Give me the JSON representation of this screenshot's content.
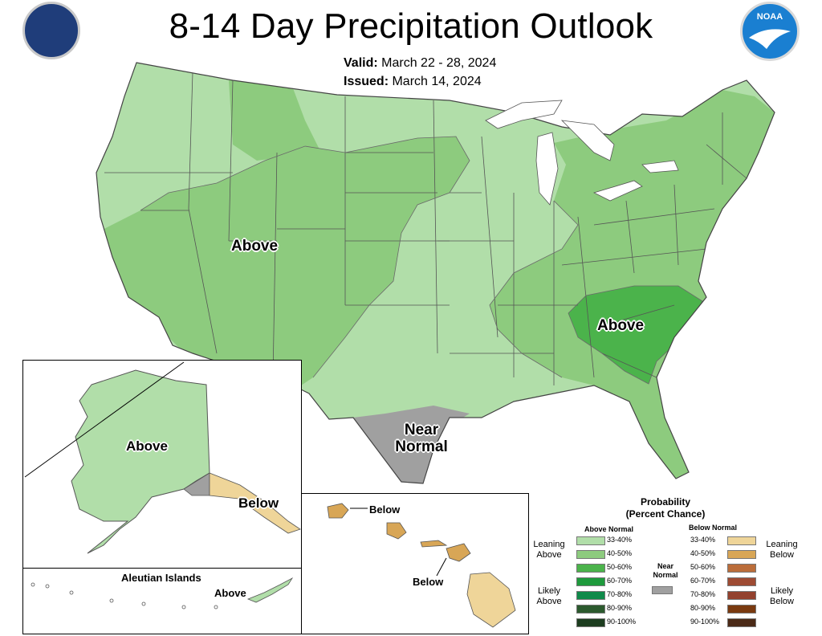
{
  "header": {
    "title": "8-14 Day Precipitation Outlook",
    "valid_label": "Valid:",
    "valid_value": "March 22 - 28, 2024",
    "issued_label": "Issued:",
    "issued_value": "March 14, 2024"
  },
  "logos": {
    "left": "commerce-seal-icon",
    "right": "noaa-logo-icon",
    "noaa_text": "NOAA"
  },
  "regions": {
    "conus_west": "Above",
    "conus_southeast": "Above",
    "texas_line1": "Near",
    "texas_line2": "Normal",
    "alaska": "Above",
    "alaska_se": "Below",
    "aleutian_title": "Aleutian Islands",
    "aleutian": "Above",
    "hawaii_west": "Below",
    "hawaii_east": "Below"
  },
  "colors": {
    "lean_above": "#b1dea9",
    "above_40_50": "#8dcb7e",
    "above_50_60": "#4bb34b",
    "near_normal": "#a0a0a0",
    "lean_below": "#efd599",
    "below_40_50": "#d8a656",
    "water": "#ffffff"
  },
  "legend": {
    "title_line1": "Probability",
    "title_line2": "(Percent Chance)",
    "above_head": "Above Normal",
    "below_head": "Below Normal",
    "near_label_1": "Near",
    "near_label_2": "Normal",
    "leaning_above_1": "Leaning",
    "leaning_above_2": "Above",
    "likely_above_1": "Likely",
    "likely_above_2": "Above",
    "leaning_below_1": "Leaning",
    "leaning_below_2": "Below",
    "likely_below_1": "Likely",
    "likely_below_2": "Below",
    "above_rows": [
      {
        "range": "33-40%",
        "color": "#b1dea9"
      },
      {
        "range": "40-50%",
        "color": "#8dcb7e"
      },
      {
        "range": "50-60%",
        "color": "#4bb34b"
      },
      {
        "range": "60-70%",
        "color": "#1e9a3c"
      },
      {
        "range": "70-80%",
        "color": "#0f8a4a"
      },
      {
        "range": "80-90%",
        "color": "#2c5a2e"
      },
      {
        "range": "90-100%",
        "color": "#1d3d1f"
      }
    ],
    "below_rows": [
      {
        "range": "33-40%",
        "color": "#efd599"
      },
      {
        "range": "40-50%",
        "color": "#d8a656"
      },
      {
        "range": "50-60%",
        "color": "#bb6d3a"
      },
      {
        "range": "60-70%",
        "color": "#9e4b33"
      },
      {
        "range": "70-80%",
        "color": "#93412e"
      },
      {
        "range": "80-90%",
        "color": "#7a3a10"
      },
      {
        "range": "90-100%",
        "color": "#4b2a17"
      }
    ]
  }
}
